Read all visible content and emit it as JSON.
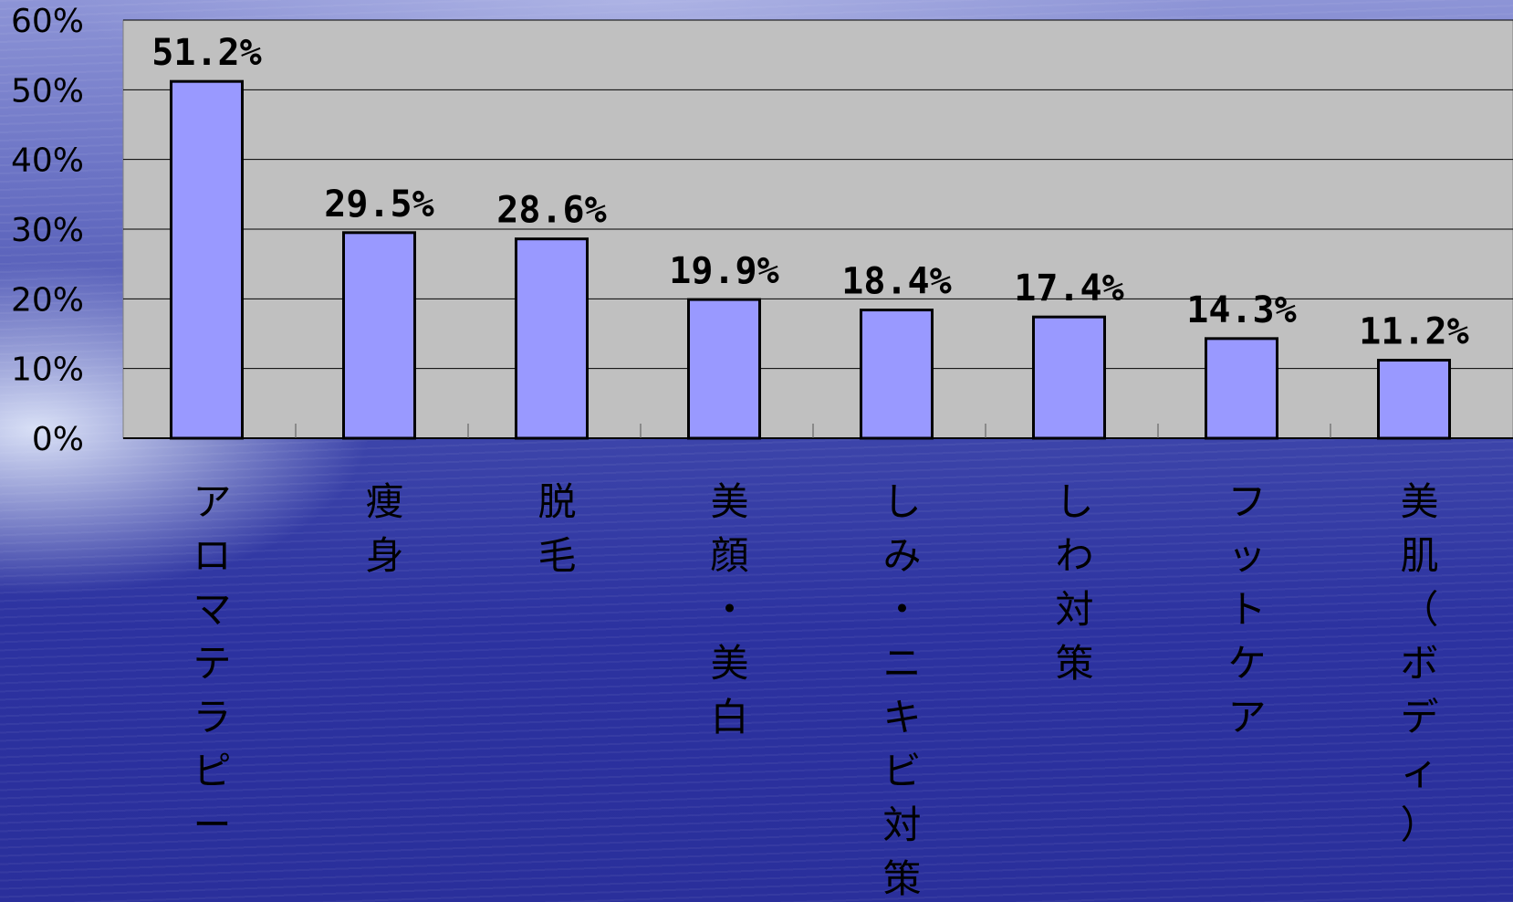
{
  "chart_data": {
    "type": "bar",
    "title": "",
    "xlabel": "",
    "ylabel": "",
    "categories": [
      "アロマテラピー",
      "痩身",
      "脱毛",
      "美顔・美白",
      "しみ・ニキビ対策",
      "しわ対策",
      "フットケア",
      "美肌（ボディ）"
    ],
    "category_label_chars": [
      [
        "ア",
        "ロ",
        "マ",
        "テ",
        "ラ",
        "ピ",
        "ー"
      ],
      [
        "痩",
        "身"
      ],
      [
        "脱",
        "毛"
      ],
      [
        "美",
        "顔",
        "・",
        "美",
        "白"
      ],
      [
        "し",
        "み",
        "・",
        "ニ",
        "キ",
        "ビ",
        "対",
        "策"
      ],
      [
        "し",
        "わ",
        "対",
        "策"
      ],
      [
        "フ",
        "ッ",
        "ト",
        "ケ",
        "ア"
      ],
      [
        "美",
        "肌",
        "（",
        "ボ",
        "デ",
        "ィ",
        "）"
      ]
    ],
    "values": [
      51.2,
      29.5,
      28.6,
      19.9,
      18.4,
      17.4,
      14.3,
      11.2
    ],
    "data_labels": [
      "51.2%",
      "29.5%",
      "28.6%",
      "19.9%",
      "18.4%",
      "17.4%",
      "14.3%",
      "11.2%"
    ],
    "ylim": [
      0,
      60
    ],
    "yticks": [
      0,
      10,
      20,
      30,
      40,
      50,
      60
    ],
    "ytick_labels": [
      "0%",
      "10%",
      "20%",
      "30%",
      "40%",
      "50%",
      "60%"
    ],
    "grid": true,
    "colors": {
      "bar_fill": "#9999ff",
      "bar_stroke": "#000000",
      "plot_background": "#c0c0c0",
      "gridline": "#000000",
      "text": "#000000"
    }
  }
}
